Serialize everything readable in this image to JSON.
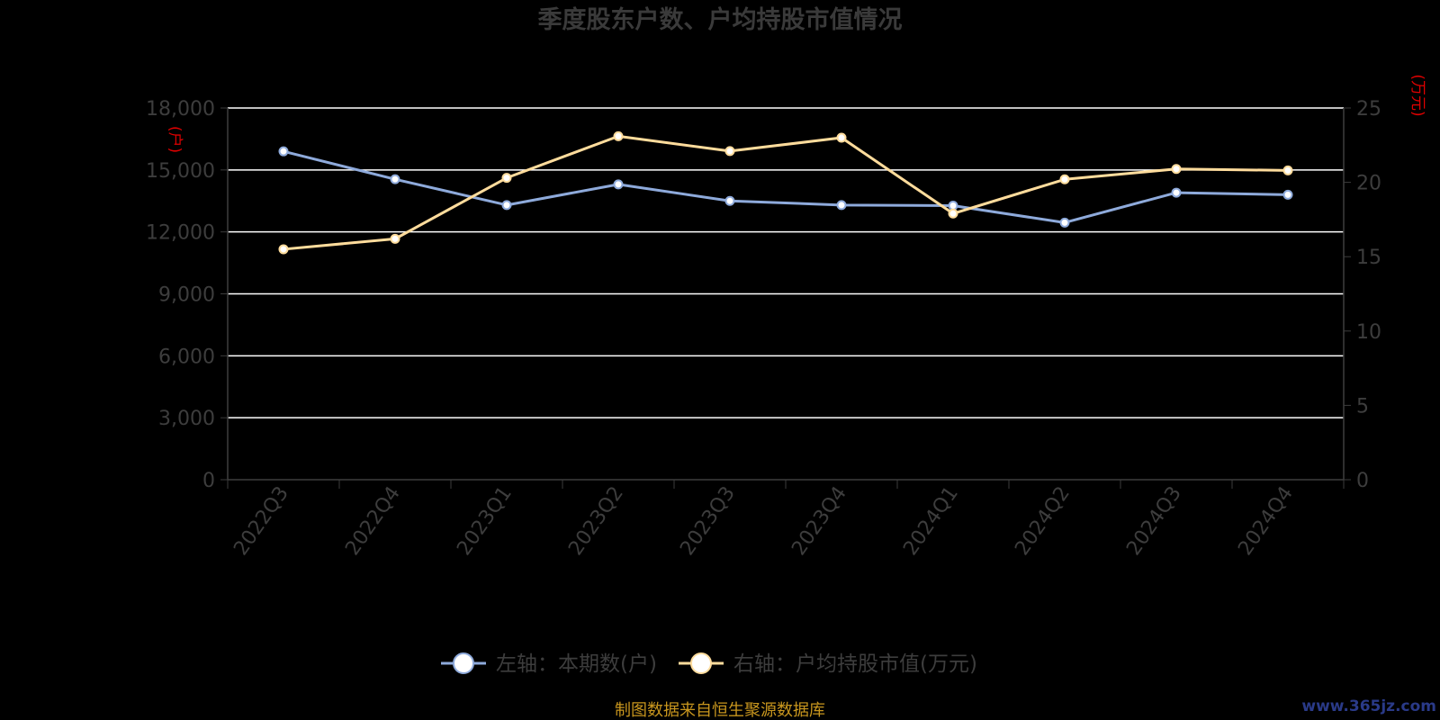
{
  "chart_data": {
    "type": "line",
    "title": "季度股东户数、户均持股市值情况",
    "categories": [
      "2022Q3",
      "2022Q4",
      "2023Q1",
      "2023Q2",
      "2023Q3",
      "2023Q4",
      "2024Q1",
      "2024Q2",
      "2024Q3",
      "2024Q4"
    ],
    "series": [
      {
        "name": "左轴：本期数(户)",
        "axis": "left",
        "color": "#8eaadb",
        "values": [
          15900,
          14550,
          13300,
          14300,
          13500,
          13300,
          13270,
          12450,
          13900,
          13800
        ]
      },
      {
        "name": "右轴：户均持股市值(万元)",
        "axis": "right",
        "color": "#ffdc9c",
        "values": [
          15.5,
          16.2,
          20.3,
          23.1,
          22.1,
          23.0,
          17.9,
          20.2,
          20.9,
          20.8
        ]
      }
    ],
    "y_left": {
      "unit": "(户)",
      "range": [
        0,
        18000
      ],
      "ticks": [
        "0",
        "3,000",
        "6,000",
        "9,000",
        "12,000",
        "15,000",
        "18,000"
      ]
    },
    "y_right": {
      "unit": "(万元)",
      "range": [
        0,
        25
      ],
      "ticks": [
        "0",
        "5",
        "10",
        "15",
        "20",
        "25"
      ]
    },
    "grid": true,
    "legend_position": "bottom-center"
  },
  "footer": {
    "source": "制图数据来自恒生聚源数据库",
    "watermark": "www.365jz.com"
  },
  "colors": {
    "background": "#000000",
    "grid": "#ffffff",
    "axis_text": "#3d3d3d",
    "unit_text": "#e00000"
  }
}
